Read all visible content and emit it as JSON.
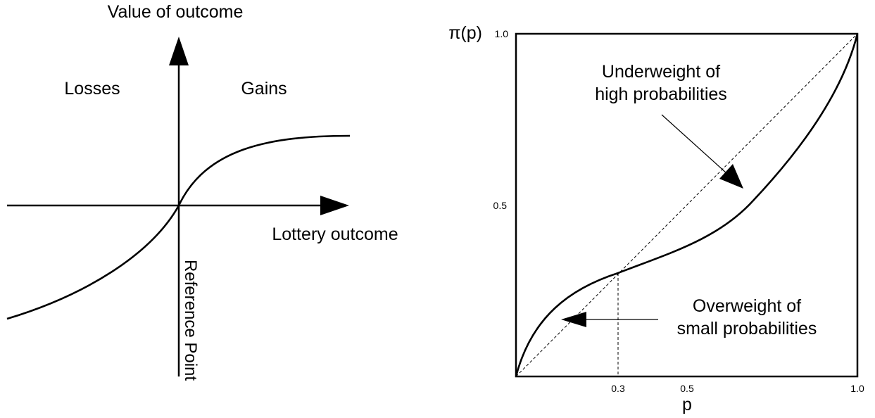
{
  "value_function": {
    "y_axis_label": "Value of outcome",
    "x_axis_label": "Lottery outcome",
    "losses_label": "Losses",
    "gains_label": "Gains",
    "reference_label": "Reference Point"
  },
  "weighting_function": {
    "y_axis_label": "π(p)",
    "x_axis_label": "p",
    "y_ticks": [
      "1.0",
      "0.5"
    ],
    "x_ticks": [
      "0.3",
      "0.5",
      "1.0"
    ],
    "crossover_p": 0.3,
    "annotation_high": {
      "line1": "Underweight of",
      "line2": "high probabilities"
    },
    "annotation_low": {
      "line1": "Overweight of",
      "line2": "small probabilities"
    }
  }
}
